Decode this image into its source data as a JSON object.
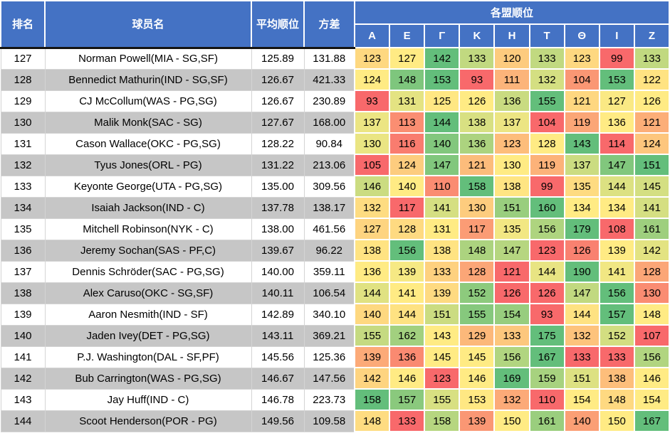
{
  "header": {
    "rank": "排名",
    "player": "球员名",
    "avg_rank": "平均顺位",
    "variance": "方差",
    "league_group": "各盟顺位"
  },
  "chart_data": {
    "type": "table",
    "league_columns": [
      "Α",
      "Ε",
      "Γ",
      "Κ",
      "Η",
      "Τ",
      "Θ",
      "Ι",
      "Ζ"
    ],
    "rows": [
      {
        "rank": "127",
        "player": "Norman Powell(MIA - SG,SF)",
        "avg_rank": "125.89",
        "variance": "131.88",
        "league_ranks": [
          123,
          127,
          142,
          133,
          120,
          133,
          123,
          99,
          133
        ]
      },
      {
        "rank": "128",
        "player": "Bennedict Mathurin(IND - SG,SF)",
        "avg_rank": "126.67",
        "variance": "421.33",
        "league_ranks": [
          124,
          148,
          153,
          93,
          111,
          132,
          104,
          153,
          122
        ]
      },
      {
        "rank": "129",
        "player": "CJ McCollum(WAS - PG,SG)",
        "avg_rank": "126.67",
        "variance": "230.89",
        "league_ranks": [
          93,
          131,
          125,
          126,
          136,
          155,
          121,
          127,
          126
        ]
      },
      {
        "rank": "130",
        "player": "Malik Monk(SAC - SG)",
        "avg_rank": "127.67",
        "variance": "168.00",
        "league_ranks": [
          137,
          113,
          144,
          138,
          137,
          104,
          119,
          136,
          121
        ]
      },
      {
        "rank": "131",
        "player": "Cason Wallace(OKC - PG,SG)",
        "avg_rank": "128.22",
        "variance": "90.84",
        "league_ranks": [
          130,
          116,
          140,
          136,
          123,
          128,
          143,
          114,
          124
        ]
      },
      {
        "rank": "132",
        "player": "Tyus Jones(ORL - PG)",
        "avg_rank": "131.22",
        "variance": "213.06",
        "league_ranks": [
          105,
          124,
          147,
          121,
          130,
          119,
          137,
          147,
          151
        ]
      },
      {
        "rank": "133",
        "player": "Keyonte George(UTA - PG,SG)",
        "avg_rank": "135.00",
        "variance": "309.56",
        "league_ranks": [
          146,
          140,
          110,
          158,
          138,
          99,
          135,
          144,
          145
        ]
      },
      {
        "rank": "134",
        "player": "Isaiah Jackson(IND - C)",
        "avg_rank": "137.78",
        "variance": "138.17",
        "league_ranks": [
          132,
          117,
          141,
          130,
          151,
          160,
          134,
          134,
          141
        ]
      },
      {
        "rank": "135",
        "player": "Mitchell Robinson(NYK - C)",
        "avg_rank": "138.00",
        "variance": "461.56",
        "league_ranks": [
          127,
          128,
          131,
          117,
          135,
          156,
          179,
          108,
          161
        ]
      },
      {
        "rank": "136",
        "player": "Jeremy Sochan(SAS - PF,C)",
        "avg_rank": "139.67",
        "variance": "96.22",
        "league_ranks": [
          138,
          156,
          138,
          148,
          147,
          123,
          126,
          139,
          142
        ]
      },
      {
        "rank": "137",
        "player": "Dennis Schröder(SAC - PG,SG)",
        "avg_rank": "140.00",
        "variance": "359.11",
        "league_ranks": [
          136,
          139,
          133,
          128,
          121,
          144,
          190,
          141,
          128
        ]
      },
      {
        "rank": "138",
        "player": "Alex Caruso(OKC - SG,SF)",
        "avg_rank": "140.11",
        "variance": "106.54",
        "league_ranks": [
          144,
          141,
          139,
          152,
          126,
          126,
          147,
          156,
          130
        ]
      },
      {
        "rank": "139",
        "player": "Aaron Nesmith(IND - SF)",
        "avg_rank": "142.89",
        "variance": "340.10",
        "league_ranks": [
          140,
          144,
          151,
          155,
          154,
          93,
          144,
          157,
          148
        ]
      },
      {
        "rank": "140",
        "player": "Jaden Ivey(DET - PG,SG)",
        "avg_rank": "143.11",
        "variance": "369.21",
        "league_ranks": [
          155,
          162,
          143,
          129,
          133,
          175,
          132,
          152,
          107
        ]
      },
      {
        "rank": "141",
        "player": "P.J. Washington(DAL - SF,PF)",
        "avg_rank": "145.56",
        "variance": "125.36",
        "league_ranks": [
          139,
          136,
          145,
          145,
          156,
          167,
          133,
          133,
          156
        ]
      },
      {
        "rank": "142",
        "player": "Bub Carrington(WAS - PG,SG)",
        "avg_rank": "146.67",
        "variance": "147.56",
        "league_ranks": [
          142,
          146,
          123,
          146,
          169,
          159,
          151,
          138,
          146
        ]
      },
      {
        "rank": "143",
        "player": "Jay Huff(IND - C)",
        "avg_rank": "146.78",
        "variance": "223.73",
        "league_ranks": [
          158,
          157,
          155,
          153,
          132,
          110,
          154,
          148,
          154
        ]
      },
      {
        "rank": "144",
        "player": "Scoot Henderson(POR - PG)",
        "avg_rank": "149.56",
        "variance": "109.58",
        "league_ranks": [
          148,
          133,
          158,
          139,
          150,
          161,
          140,
          150,
          167
        ]
      }
    ],
    "heatmap_scale": {
      "scope": "per-row",
      "midpoint": "median",
      "min_color": "#F8696B",
      "mid_color": "#FFEB84",
      "max_color": "#63BE7B"
    }
  },
  "colors": {
    "header_bg": "#4472C4",
    "header_text": "#FFFFFF",
    "row_bg": "#FFFFFF",
    "row_alt_bg": "#C6C6C6",
    "grid_line": "#D4D4D4",
    "header_underline": "#141414",
    "cell_text": "#000000"
  }
}
